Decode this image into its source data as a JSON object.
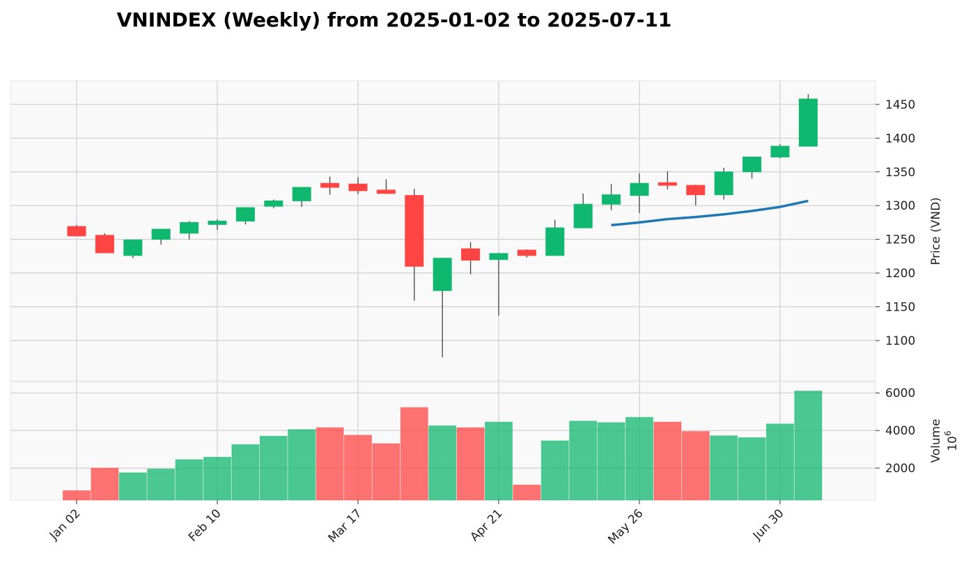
{
  "chart_data": {
    "type": "candlestick",
    "title": "VNINDEX (Weekly) from 2025-01-02 to 2025-07-11",
    "price_ylabel": "Price (VND)",
    "volume_ylabel": "Volume",
    "volume_scale_label": "10",
    "volume_scale_exp": "6",
    "price_ylim": [
      1040,
      1485
    ],
    "volume_ylim": [
      300,
      6600
    ],
    "price_yticks": [
      1100,
      1150,
      1200,
      1250,
      1300,
      1350,
      1400,
      1450
    ],
    "volume_yticks": [
      2000,
      4000,
      6000
    ],
    "x_tick_labels": [
      {
        "label": "Jan 02",
        "week_index": 0
      },
      {
        "label": "Feb 10",
        "week_index": 5
      },
      {
        "label": "Mar 17",
        "week_index": 10
      },
      {
        "label": "Apr 21",
        "week_index": 15
      },
      {
        "label": "May 26",
        "week_index": 20
      },
      {
        "label": "Jun 30",
        "week_index": 25
      }
    ],
    "colors": {
      "up": "#10b76e",
      "down": "#ff4444",
      "ma": "#1f77b4",
      "grid": "#cfcfcf",
      "panel_bg": "#f9f9f9"
    },
    "candles": [
      {
        "open": 1269,
        "high": 1271,
        "low": 1255,
        "close": 1255
      },
      {
        "open": 1256,
        "high": 1259,
        "low": 1230,
        "close": 1230
      },
      {
        "open": 1226,
        "high": 1249,
        "low": 1222,
        "close": 1249
      },
      {
        "open": 1250,
        "high": 1265,
        "low": 1242,
        "close": 1265
      },
      {
        "open": 1259,
        "high": 1277,
        "low": 1250,
        "close": 1275
      },
      {
        "open": 1272,
        "high": 1280,
        "low": 1264,
        "close": 1277
      },
      {
        "open": 1277,
        "high": 1297,
        "low": 1272,
        "close": 1297
      },
      {
        "open": 1299,
        "high": 1309,
        "low": 1296,
        "close": 1307
      },
      {
        "open": 1307,
        "high": 1327,
        "low": 1298,
        "close": 1327
      },
      {
        "open": 1333,
        "high": 1343,
        "low": 1316,
        "close": 1327
      },
      {
        "open": 1332,
        "high": 1342,
        "low": 1317,
        "close": 1322
      },
      {
        "open": 1323,
        "high": 1339,
        "low": 1317,
        "close": 1318
      },
      {
        "open": 1315,
        "high": 1325,
        "low": 1159,
        "close": 1210
      },
      {
        "open": 1174,
        "high": 1222,
        "low": 1075,
        "close": 1222
      },
      {
        "open": 1236,
        "high": 1246,
        "low": 1198,
        "close": 1219
      },
      {
        "open": 1220,
        "high": 1230,
        "low": 1137,
        "close": 1229
      },
      {
        "open": 1234,
        "high": 1235,
        "low": 1223,
        "close": 1226
      },
      {
        "open": 1226,
        "high": 1279,
        "low": 1226,
        "close": 1267
      },
      {
        "open": 1267,
        "high": 1318,
        "low": 1267,
        "close": 1302
      },
      {
        "open": 1302,
        "high": 1332,
        "low": 1293,
        "close": 1316
      },
      {
        "open": 1315,
        "high": 1348,
        "low": 1289,
        "close": 1333
      },
      {
        "open": 1334,
        "high": 1351,
        "low": 1324,
        "close": 1330
      },
      {
        "open": 1330,
        "high": 1331,
        "low": 1300,
        "close": 1316
      },
      {
        "open": 1316,
        "high": 1356,
        "low": 1309,
        "close": 1350
      },
      {
        "open": 1350,
        "high": 1373,
        "low": 1340,
        "close": 1372
      },
      {
        "open": 1372,
        "high": 1391,
        "low": 1370,
        "close": 1388
      },
      {
        "open": 1388,
        "high": 1465,
        "low": 1388,
        "close": 1458
      }
    ],
    "volumes": [
      800,
      2000,
      1750,
      1950,
      2450,
      2580,
      3250,
      3700,
      4050,
      4150,
      3750,
      3300,
      5220,
      4250,
      4150,
      4450,
      1100,
      3450,
      4500,
      4420,
      4700,
      4450,
      3950,
      3720,
      3620,
      4350,
      6100
    ],
    "ma_start_index": 19,
    "ma_values": [
      1271,
      1275,
      1280,
      1283,
      1287,
      1292,
      1298,
      1307
    ]
  }
}
